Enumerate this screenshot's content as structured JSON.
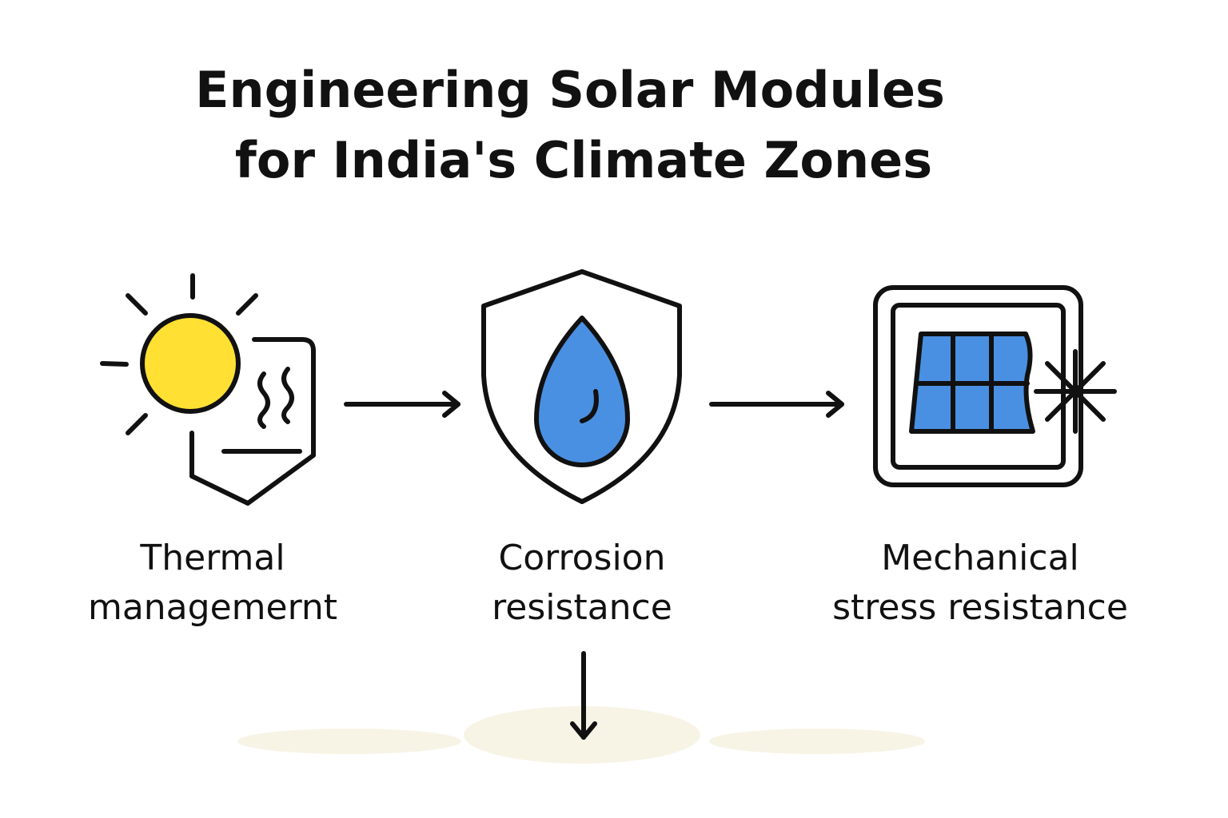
{
  "title": {
    "lines": [
      "Engineering Solar Modules",
      "for India's Climate Zones"
    ]
  },
  "nodes": [
    {
      "label": [
        "Thermal",
        "managemernt"
      ]
    },
    {
      "label": [
        "Corrosion",
        "resistance"
      ]
    },
    {
      "label": [
        "Mechanical",
        "stress resistance"
      ]
    }
  ]
}
